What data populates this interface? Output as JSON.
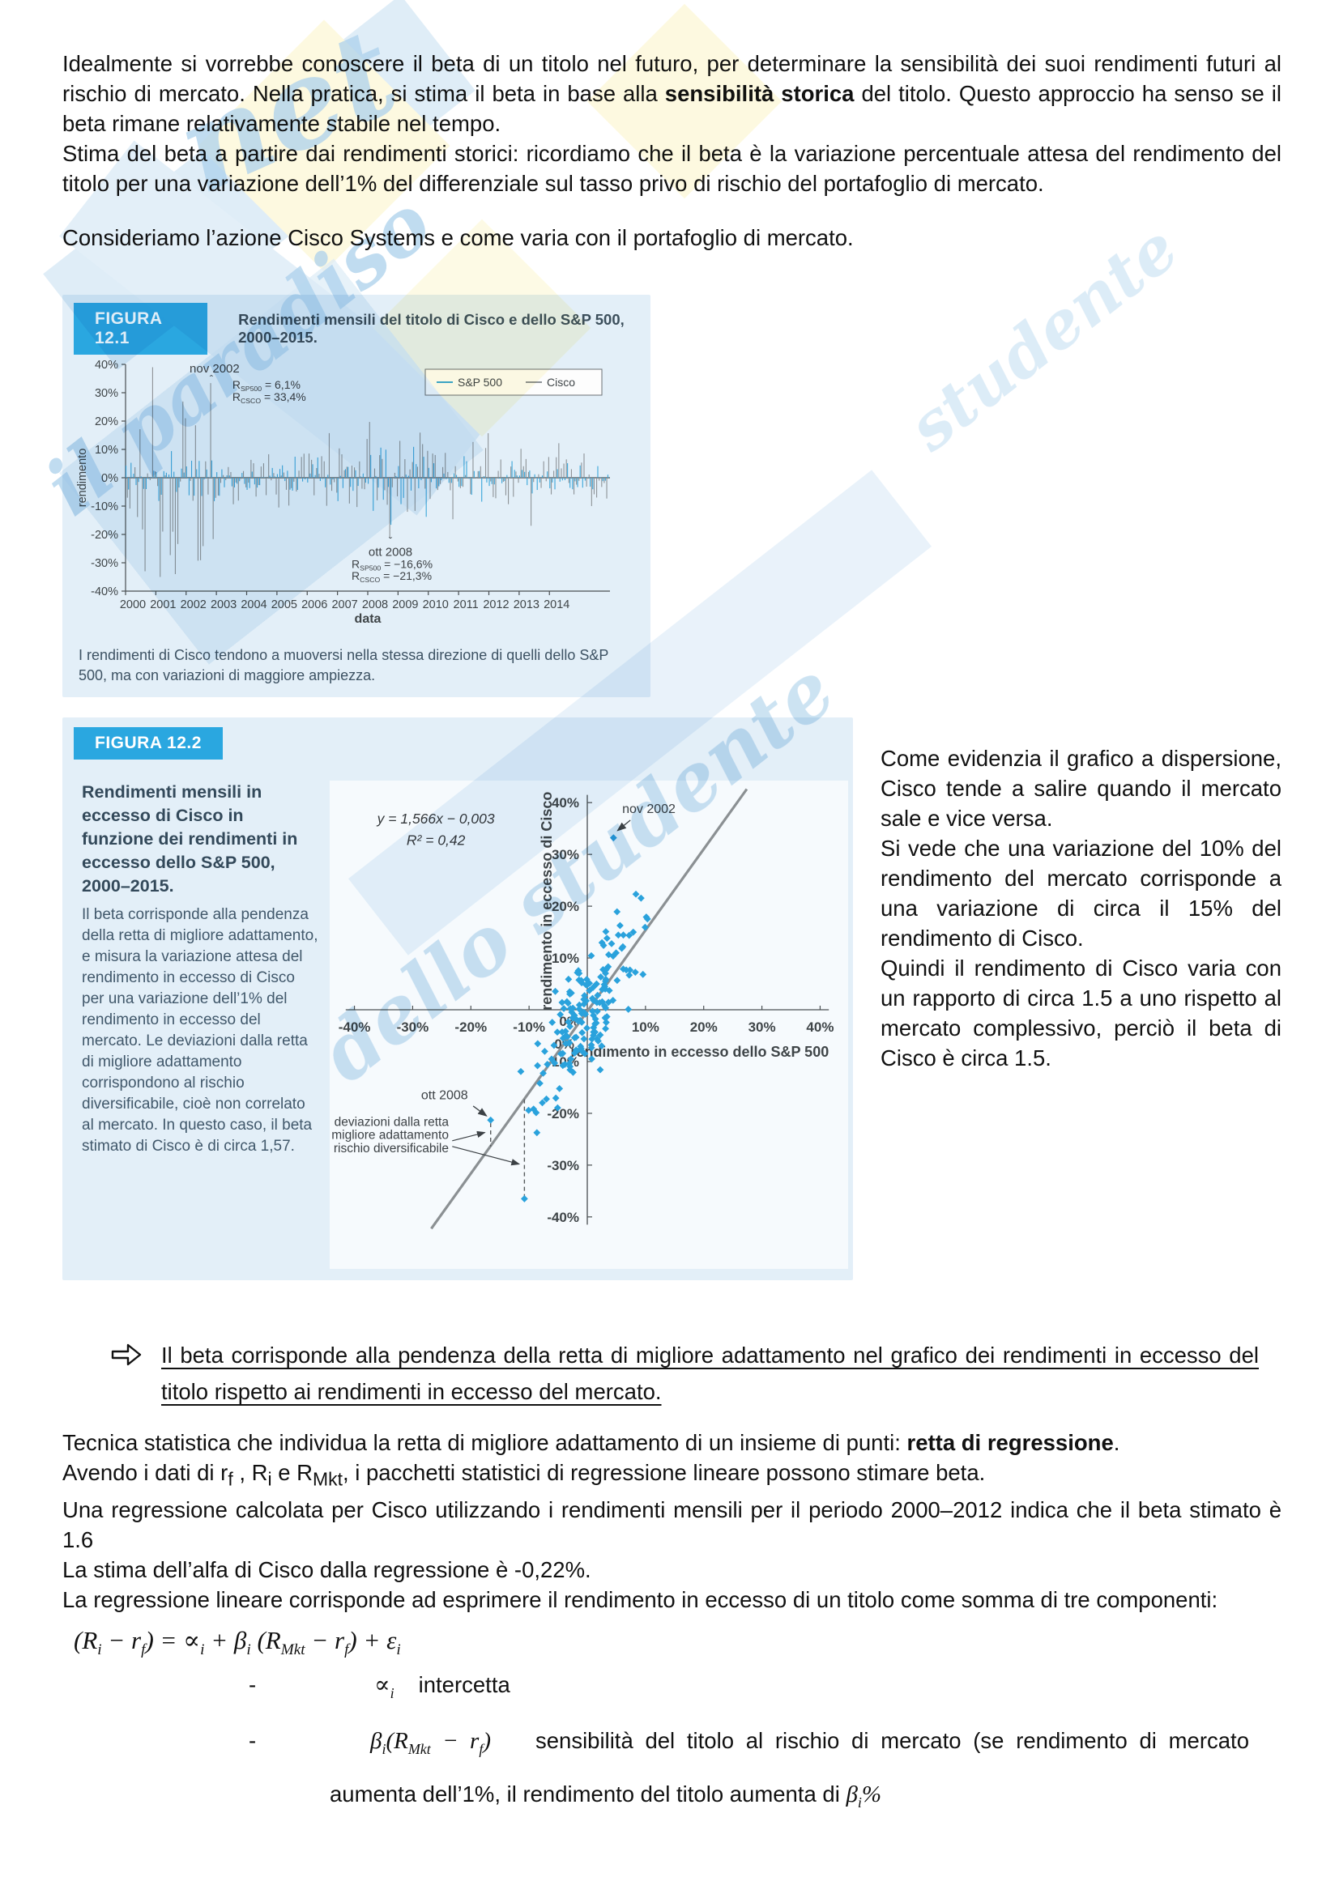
{
  "watermark": {
    "brand": "net",
    "script": "il paradiso dello studente"
  },
  "paras": {
    "p1": [
      {
        "t": "Idealmente si vorrebbe conoscere il beta di un titolo nel futuro, per determinare la sensibilità dei suoi rendimenti futuri al rischio di mercato. Nella pratica, si stima il beta in base alla "
      },
      {
        "t": "sensibilità storica",
        "b": 1
      },
      {
        "t": " del titolo. Questo approccio ha senso se il beta rimane relativamente stabile nel tempo."
      }
    ],
    "p2": "Stima del beta a partire dai rendimenti storici: ricordiamo che il beta è la variazione percentuale attesa del rendimento del titolo per una variazione dell’1% del differenziale sul tasso privo di rischio del portafoglio di mercato.",
    "p3": "Consideriamo l’azione Cisco Systems e come varia con il portafoglio di mercato.",
    "right_col": [
      "Come evidenzia il grafico a dispersione, Cisco tende a salire quando il mercato sale e vice versa.",
      "Si vede che una variazione del 10% del rendimento del mercato corrisponde a una variazione di circa il 15% del rendimento di Cisco.",
      "Quindi il rendimento di Cisco varia con un rapporto di circa 1.5 a uno rispetto al mercato complessivo, perciò il beta di Cisco è circa 1.5."
    ],
    "bullet": "Il beta corrisponde alla pendenza della retta di migliore adattamento nel grafico dei rendimenti in eccesso del titolo rispetto ai rendimenti in eccesso del mercato.",
    "p4": [
      {
        "t": "Tecnica statistica che individua la retta di migliore adattamento di un insieme di punti: "
      },
      {
        "t": "retta di regressione",
        "b": 1
      },
      {
        "t": "."
      }
    ],
    "p5": [
      {
        "t": "Avendo i dati di r"
      },
      {
        "t": "f",
        "sub": 1
      },
      {
        "t": " , R"
      },
      {
        "t": "i",
        "sub": 1
      },
      {
        "t": " e R"
      },
      {
        "t": "Mkt",
        "sub": 1
      },
      {
        "t": ", i pacchetti statistici di regressione lineare possono stimare beta."
      }
    ],
    "p6": "Una regressione calcolata per Cisco utilizzando i rendimenti mensili per il periodo 2000–2012 indica che il beta stimato è 1.6",
    "p7": "La stima dell’alfa di Cisco dalla regressione è -0,22%.",
    "p8": "La regressione lineare corrisponde ad esprimere il rendimento in eccesso di un titolo come somma di tre componenti:"
  },
  "formula": {
    "main": [
      {
        "t": "(R"
      },
      {
        "t": "i",
        "sub": 1
      },
      {
        "t": " − r"
      },
      {
        "t": "f",
        "sub": 1
      },
      {
        "t": ") = ∝"
      },
      {
        "t": "i",
        "sub": 1
      },
      {
        "t": " + β"
      },
      {
        "t": "i",
        "sub": 1
      },
      {
        "t": " (R"
      },
      {
        "t": "Mkt",
        "sub": 1
      },
      {
        "t": " − r"
      },
      {
        "t": "f",
        "sub": 1
      },
      {
        "t": ") + ε"
      },
      {
        "t": "i",
        "sub": 1
      }
    ],
    "b1_sym": [
      {
        "t": "∝"
      },
      {
        "t": "i",
        "sub": 1
      }
    ],
    "b1_text": "intercetta",
    "b2_sym": [
      {
        "t": "β"
      },
      {
        "t": "i",
        "sub": 1
      },
      {
        "t": "(R"
      },
      {
        "t": "Mkt",
        "sub": 1
      },
      {
        "t": " − r"
      },
      {
        "t": "f",
        "sub": 1
      },
      {
        "t": ")"
      }
    ],
    "b2_text": "sensibilità del titolo al rischio di mercato (se rendimento di mercato aumenta dell’1%, il rendimento del titolo aumenta di ",
    "b2_tail": [
      {
        "t": "β"
      },
      {
        "t": "i",
        "sub": 1
      },
      {
        "t": "%"
      }
    ]
  },
  "fig1": {
    "label": "FIGURA 12.1",
    "caption": "Rendimenti mensili del titolo di Cisco e dello S&P 500, 2000–2015.",
    "note": "I rendimenti di Cisco tendono a muoversi nella stessa direzione di quelli dello S&P 500, ma con variazioni di maggiore ampiezza.",
    "chart_data": {
      "type": "bar",
      "title": "Rendimenti mensili del titolo di Cisco e dello S&P 500, 2000–2015",
      "xlabel": "data",
      "ylabel": "rendimento",
      "ylim": [
        -40,
        40
      ],
      "y_ticks": [
        {
          "v": 40,
          "l": "40%"
        },
        {
          "v": 30,
          "l": "30%"
        },
        {
          "v": 20,
          "l": "20%"
        },
        {
          "v": 10,
          "l": "10%"
        },
        {
          "v": 0,
          "l": "0%"
        },
        {
          "v": -10,
          "l": "-10%"
        },
        {
          "v": -20,
          "l": "-20%"
        },
        {
          "v": -30,
          "l": "-30%"
        },
        {
          "v": -40,
          "l": "-40%"
        }
      ],
      "x_ticks": [
        "2000",
        "2001",
        "2002",
        "2003",
        "2004",
        "2005",
        "2006",
        "2007",
        "2008",
        "2009",
        "2010",
        "2011",
        "2012",
        "2013",
        "2014"
      ],
      "legend": [
        {
          "name": "S&P 500",
          "color": "#3aa6d9"
        },
        {
          "name": "Cisco",
          "color": "#8e9397"
        }
      ],
      "annotations": [
        {
          "id": "nov2002",
          "label": "nov 2002",
          "month": 34,
          "placement": "top",
          "values": [
            {
              "sym": "R",
              "sub": "SP500",
              "eq": " = 6,1%"
            },
            {
              "sym": "R",
              "sub": "CSCO",
              "eq": " = 33,4%"
            }
          ]
        },
        {
          "id": "ott2008",
          "label": "ott 2008",
          "month": 105,
          "placement": "bottom",
          "values": [
            {
              "sym": "R",
              "sub": "SP500",
              "eq": " = −16,6%"
            },
            {
              "sym": "R",
              "sub": "CSCO",
              "eq": " = −21,3%"
            }
          ]
        }
      ],
      "synth": {
        "months": 192,
        "start_year": 2000,
        "seed": 11,
        "cisco_sigma": [
          [
            36,
            14.5
          ],
          [
            96,
            6.2
          ],
          [
            120,
            9.5
          ],
          [
            192,
            6.2
          ]
        ],
        "snp_sigma": [
          [
            36,
            4.8
          ],
          [
            96,
            3.0
          ],
          [
            120,
            6.8
          ],
          [
            192,
            3.3
          ]
        ],
        "overrides": {
          "8": [
            -4,
            -33
          ],
          "11": [
            2.5,
            39
          ],
          "14": [
            -6,
            -35
          ],
          "20": [
            -5,
            -34
          ],
          "24": [
            4,
            21
          ],
          "28": [
            3,
            18.5
          ],
          "34": [
            6.1,
            33.4
          ],
          "105": [
            -16.6,
            -21.3
          ]
        }
      }
    }
  },
  "fig2": {
    "label": "FIGURA 12.2",
    "side_title": "Rendimenti mensili in eccesso di Cisco in funzione dei rendimenti in eccesso dello S&P 500, 2000–2015.",
    "side_text": "Il beta corrisponde alla pendenza della retta di migliore adattamento, e misura la variazione attesa del rendimento in eccesso di Cisco per una variazione dell’1% del rendimento in eccesso del mercato. Le deviazioni dalla retta di migliore adattamento corrispondono al rischio diversificabile, cioè non correlato al mercato. In questo caso, il beta stimato di Cisco è di circa 1,57.",
    "chart_data": {
      "type": "scatter",
      "equation": "y = 1,566x − 0,003",
      "r2": "R² = 0,42",
      "slope": 1.566,
      "intercept_pct": -0.3,
      "xlabel": "rendimento in eccesso dello S&P 500",
      "ylabel": "rendimento in eccesso di Cisco",
      "xlim": [
        -43,
        43
      ],
      "ylim": [
        -43,
        43
      ],
      "x_ticks": [
        {
          "v": -40,
          "l": "-40%"
        },
        {
          "v": -30,
          "l": "-30%"
        },
        {
          "v": -20,
          "l": "-20%"
        },
        {
          "v": -10,
          "l": "-10%"
        },
        {
          "v": 0,
          "l": "0%"
        },
        {
          "v": 10,
          "l": "10%"
        },
        {
          "v": 20,
          "l": "20%"
        },
        {
          "v": 30,
          "l": "30%"
        },
        {
          "v": 40,
          "l": "40%"
        }
      ],
      "y_ticks": [
        {
          "v": 40,
          "l": "40%"
        },
        {
          "v": 30,
          "l": "30%"
        },
        {
          "v": 20,
          "l": "20%"
        },
        {
          "v": 10,
          "l": "10%"
        },
        {
          "v": 0,
          "l": "0%"
        },
        {
          "v": -10,
          "l": "-10%"
        },
        {
          "v": -20,
          "l": "-20%"
        },
        {
          "v": -30,
          "l": "-30%"
        },
        {
          "v": -40,
          "l": "-40%"
        }
      ],
      "point_color": "#2aa2dc",
      "line_color": "#8b9093",
      "key_points": {
        "nov2002": {
          "x": 4.5,
          "y": 33.2,
          "label": "nov 2002"
        },
        "ott2008": {
          "x": -16.6,
          "y": -21.3,
          "label": "ott 2008"
        },
        "dev2": {
          "x": -10.8,
          "y": -36.5
        }
      },
      "dev_label": [
        "deviazioni dalla retta",
        "di migliore adattamento",
        "= rischio diversificabile"
      ],
      "dashed": [
        {
          "x": -16.6,
          "y1": -21.9,
          "y2": -26.4
        },
        {
          "x": -10.8,
          "y1": -17.3,
          "y2": -36.0
        }
      ],
      "synth": {
        "n": 172,
        "seed": 7,
        "x_sigma": 4.2,
        "resid_sigma": 5.3
      }
    }
  }
}
